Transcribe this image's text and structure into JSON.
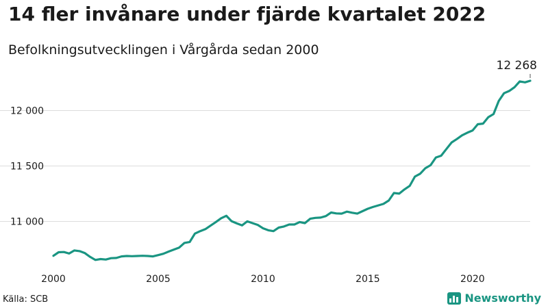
{
  "header": {
    "title": "14 fler invånare under fjärde kvartalet 2022",
    "subtitle": "Befolkningsutvecklingen i Vårgårda sedan 2000"
  },
  "footer": {
    "source": "Källa: SCB",
    "brand": "Newsworthy"
  },
  "colors": {
    "line": "#1a9582",
    "brand": "#1a9582"
  },
  "chart_data": {
    "type": "line",
    "title": "14 fler invånare under fjärde kvartalet 2022",
    "subtitle": "Befolkningsutvecklingen i Vårgårda sedan 2000",
    "xlabel": "",
    "ylabel": "",
    "grid": true,
    "xlim": [
      2000,
      2022.75
    ],
    "ylim": [
      10620,
      12330
    ],
    "x_ticks": [
      2000,
      2005,
      2010,
      2015,
      2020
    ],
    "y_ticks": [
      11000,
      11500,
      12000
    ],
    "y_tick_labels": [
      "11 000",
      "11 500",
      "12 000"
    ],
    "last_value_label": "12 268",
    "series": [
      {
        "x": [
          2000,
          2000.25,
          2000.5,
          2000.75,
          2001,
          2001.25,
          2001.5,
          2001.75,
          2002,
          2002.25,
          2002.5,
          2002.75,
          2003,
          2003.25,
          2003.5,
          2003.75,
          2004,
          2004.25,
          2004.5,
          2004.75,
          2005,
          2005.25,
          2005.5,
          2005.75,
          2006,
          2006.25,
          2006.5,
          2006.75,
          2007,
          2007.25,
          2007.5,
          2007.75,
          2008,
          2008.25,
          2008.5,
          2008.75,
          2009,
          2009.25,
          2009.5,
          2009.75,
          2010,
          2010.25,
          2010.5,
          2010.75,
          2011,
          2011.25,
          2011.5,
          2011.75,
          2012,
          2012.25,
          2012.5,
          2012.75,
          2013,
          2013.25,
          2013.5,
          2013.75,
          2014,
          2014.25,
          2014.5,
          2014.75,
          2015,
          2015.25,
          2015.5,
          2015.75,
          2016,
          2016.25,
          2016.5,
          2016.75,
          2017,
          2017.25,
          2017.5,
          2017.75,
          2018,
          2018.25,
          2018.5,
          2018.75,
          2019,
          2019.25,
          2019.5,
          2019.75,
          2020,
          2020.25,
          2020.5,
          2020.75,
          2021,
          2021.25,
          2021.5,
          2021.75,
          2022,
          2022.25,
          2022.5,
          2022.75
        ],
        "values": [
          10690,
          10722,
          10724,
          10710,
          10738,
          10732,
          10714,
          10680,
          10652,
          10660,
          10656,
          10668,
          10670,
          10684,
          10688,
          10686,
          10688,
          10690,
          10688,
          10684,
          10696,
          10708,
          10728,
          10746,
          10764,
          10806,
          10814,
          10890,
          10912,
          10930,
          10962,
          10994,
          11028,
          11050,
          11002,
          10982,
          10964,
          11000,
          10984,
          10968,
          10938,
          10920,
          10912,
          10944,
          10954,
          10972,
          10972,
          10994,
          10984,
          11024,
          11032,
          11034,
          11048,
          11080,
          11072,
          11070,
          11088,
          11078,
          11070,
          11092,
          11114,
          11130,
          11144,
          11158,
          11188,
          11256,
          11250,
          11288,
          11320,
          11404,
          11430,
          11480,
          11508,
          11576,
          11592,
          11652,
          11712,
          11742,
          11776,
          11800,
          11820,
          11876,
          11882,
          11940,
          11968,
          12086,
          12156,
          12176,
          12210,
          12262,
          12254,
          12268
        ]
      }
    ]
  }
}
